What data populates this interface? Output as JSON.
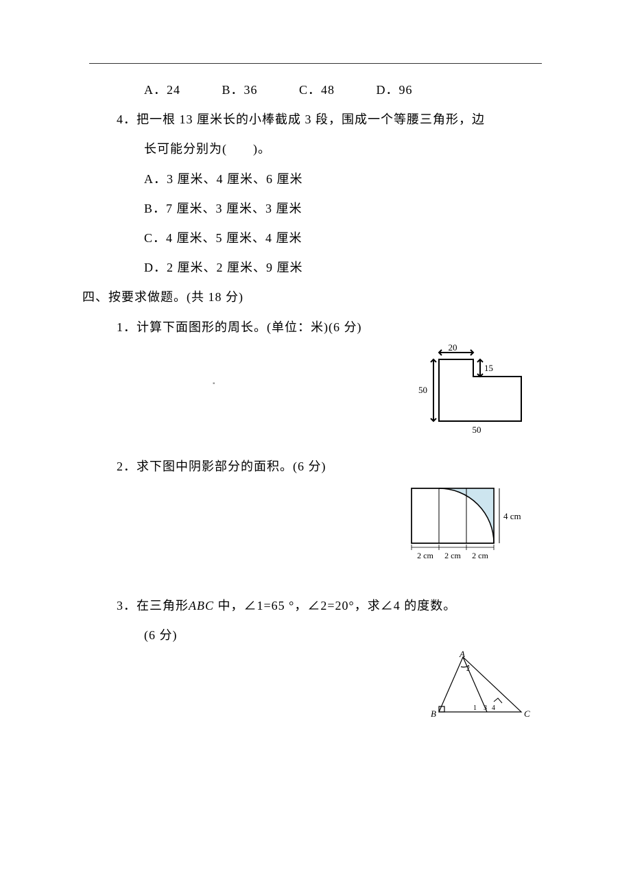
{
  "question3_choices": {
    "a": "A．24",
    "b": "B．36",
    "c": "C．48",
    "d": "D．96"
  },
  "question4": {
    "stem_line1": "4．把一根 13 厘米长的小棒截成 3 段，围成一个等腰三角形，边",
    "stem_line2": "长可能分别为(　　)。",
    "opt_a": "A．3 厘米、4 厘米、6 厘米",
    "opt_b": "B．7 厘米、3 厘米、3 厘米",
    "opt_c": "C．4 厘米、5 厘米、4 厘米",
    "opt_d": "D．2 厘米、2 厘米、9 厘米"
  },
  "section4": {
    "heading": "四、按要求做题。(共 18 分)",
    "q1": "1．计算下面图形的周长。(单位：米)(6 分)",
    "q2": "2．求下图中阴影部分的面积。(6 分)",
    "q3_line1_prefix": "3．在三角形",
    "q3_abc": "ABC",
    "q3_line1_suffix": " 中，∠1=65 °，∠2=20°，求∠4 的度数。",
    "q3_line2": "(6 分)"
  },
  "figure1": {
    "top_label": "20",
    "right_label": "15",
    "left_label": "50",
    "bottom_label": "50",
    "stroke": "#000000",
    "fill": "#ffffff",
    "font_size": 13
  },
  "figure2": {
    "right_label": "4 cm",
    "seg1": "2 cm",
    "seg2": "2 cm",
    "seg3": "2 cm",
    "stroke": "#000000",
    "shade_fill": "#cde5ef",
    "font_size": 13
  },
  "figure3": {
    "label_a": "A",
    "label_b": "B",
    "label_c": "C",
    "angle1": "1",
    "angle2": "2",
    "angle3": "3",
    "angle4": "4",
    "stroke": "#000000",
    "font_size": 13,
    "font_size_small": 10
  },
  "center_mark": "▪"
}
